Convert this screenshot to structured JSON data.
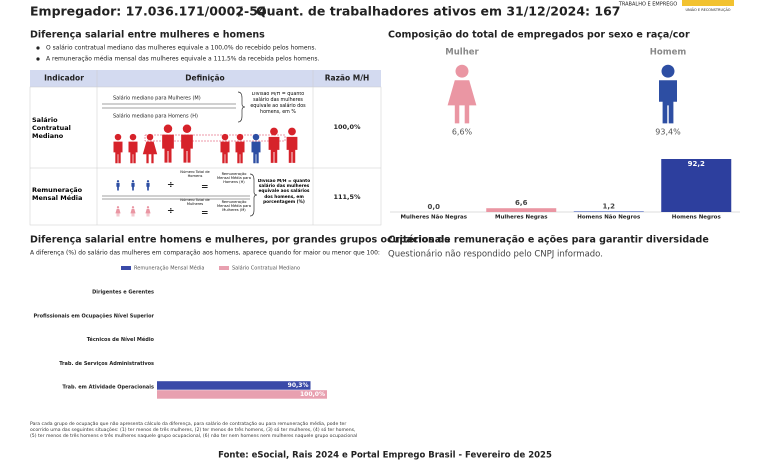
{
  "header": {
    "employer": "Empregador: 17.036.171/0002-54",
    "separator": "/",
    "workers": "Quant. de trabalhadores ativos em 31/12/2024: 167",
    "logo_text": "TRABALHO E EMPREGO",
    "logo_slogan": "UNIÃO E RECONSTRUÇÃO"
  },
  "pay_gap": {
    "title": "Diferença salarial entre mulheres e homens",
    "bullets": [
      "O salário contratual mediano das mulheres equivale a 100,0% do recebido pelos homens.",
      "A remuneração média mensal das mulheres equivale a 111,5% da recebida pelos homens."
    ],
    "table": {
      "headers": [
        "Indicador",
        "Definição",
        "Razão M/H"
      ],
      "rows": [
        {
          "indicator": "Salário Contratual Mediano",
          "women": "Salário mediano para Mulheres (M)",
          "men": "Salário mediano para Homens (H)",
          "division": "Divisão M/H = quanto salário das mulheres equivale ao salário dos homens, em %",
          "ratio": "100,0%"
        },
        {
          "indicator": "Remuneração Mensal Média",
          "men_count": "Número Total de Homens",
          "men_pay": "Remuneração Mensal Média para Homens (H)",
          "women_count": "Número Total de Mulheres",
          "women_pay": "Remuneração Mensal Média para Mulheres (M)",
          "division": "Divisão M/H = quanto salário das mulheres equivale aos salários dos homens, em porcentagem (%)",
          "ratio": "111,5%"
        }
      ]
    }
  },
  "composition": {
    "title": "Composição do total de empregados por sexo e raça/cor",
    "gender": [
      {
        "label": "Mulher",
        "share": "6,6%",
        "color": "#ea96a3"
      },
      {
        "label": "Homem",
        "share": "93,4%",
        "color": "#2d4ea3"
      }
    ],
    "chart": {
      "type": "bar",
      "categories": [
        "Mulheres Não Negras",
        "Mulheres Negras",
        "Homens Não Negros",
        "Homens Negros"
      ],
      "values": [
        0.0,
        6.6,
        1.2,
        92.2
      ],
      "value_labels": [
        "0,0",
        "6,6",
        "1,2",
        "92,2"
      ],
      "colors": [
        "#f5c9d0",
        "#ea96a3",
        "#5b73c4",
        "#2d3f9e"
      ]
    }
  },
  "criteria": {
    "title": "Critérios de remuneração e ações para garantir diversidade",
    "text": "Questionário não respondido pelo CNPJ informado."
  },
  "occupations": {
    "title": "Diferença salarial entre homens e mulheres, por grandes grupos ocupacionais",
    "subtitle": "A diferença (%) do salário das mulheres em comparação aos homens, aparece quando for maior ou menor que 100:",
    "chart": {
      "type": "bar",
      "orientation": "horizontal",
      "categories": [
        "Dirigentes e Gerentes",
        "Profissionais em Ocupações Nível Superior",
        "Técnicos de Nível Médio",
        "Trab. de Serviços Administrativos",
        "Trab. em Atividade Operacionais"
      ],
      "series": [
        {
          "name": "Remuneração Mensal Média",
          "color": "#3a4aa8",
          "values": [
            null,
            null,
            null,
            null,
            90.3
          ],
          "value_labels": [
            null,
            null,
            null,
            null,
            "90,3%"
          ]
        },
        {
          "name": "Salário Contratual Mediano",
          "color": "#e8a0b0",
          "values": [
            null,
            null,
            null,
            null,
            100.0
          ],
          "value_labels": [
            null,
            null,
            null,
            null,
            "100,0%"
          ]
        }
      ]
    },
    "footnote": "Para cada grupo de ocupação que não apresenta cálculo da diferença, para salário de contratação ou para remuneração média, pode ter ocorrido uma das seguintes situações: (1) ter menos de três mulheres, (2) ter menos de três homens, (3) só ter mulheres, (4) só ter homens, (5) ter menos de três homens e três mulheres naquele grupo ocupacional, (6) não ter nem homens nem mulheres naquele grupo ocupacional"
  },
  "footer": "Fonte: eSocial, Rais 2024 e Portal Emprego Brasil - Fevereiro de 2025"
}
